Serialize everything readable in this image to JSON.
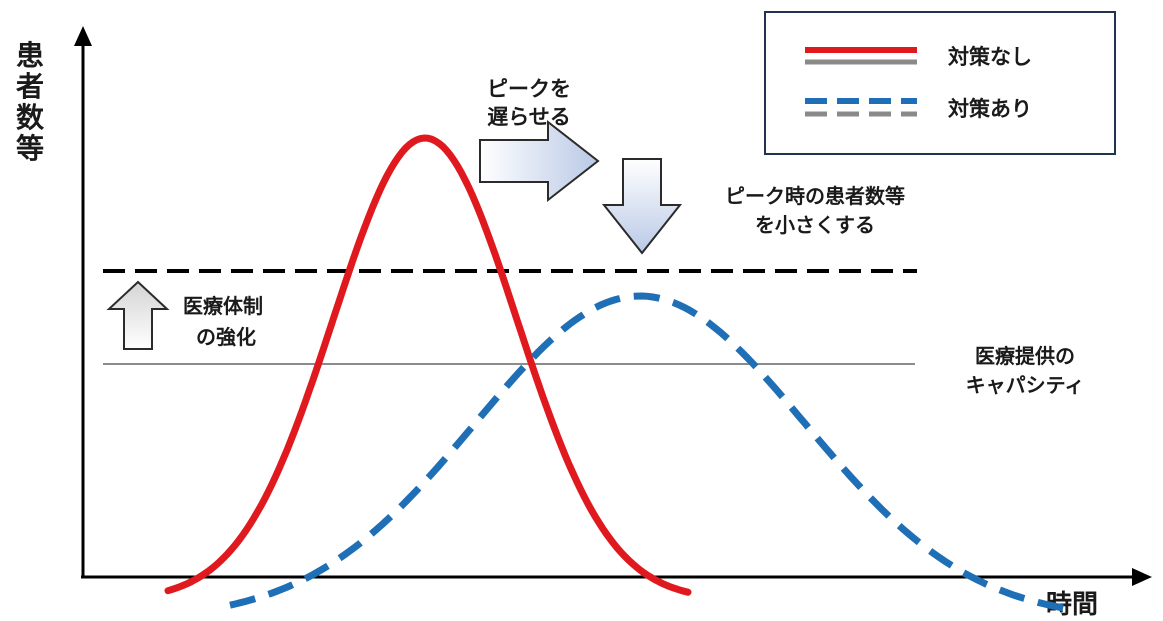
{
  "axes": {
    "y_label_chars": [
      "患",
      "者",
      "数",
      "等"
    ],
    "x_label": "時間"
  },
  "legend": {
    "without_measures": "対策なし",
    "with_measures": "対策あり"
  },
  "annotations": {
    "delay_peak_lines": [
      "ピークを",
      "遅らせる"
    ],
    "reduce_peak_lines": [
      "ピーク時の患者数等",
      "を小さくする"
    ],
    "strengthen_care_lines": [
      "医療体制",
      "の強化"
    ],
    "capacity_lines": [
      "医療提供の",
      "キャパシティ"
    ]
  },
  "colors": {
    "without_measures": "#e0191f",
    "with_measures": "#1f6fb7",
    "legend_gray": "#8a8a8a",
    "arrow_fill": "#d6e0f0",
    "up_arrow_fill": "#e6e6e6",
    "capacity_line": "#8c8c8c",
    "threshold_line": "#000000"
  },
  "icons": {
    "delay": "right-arrow-icon",
    "reduce": "down-arrow-icon",
    "strengthen": "up-arrow-icon"
  }
}
